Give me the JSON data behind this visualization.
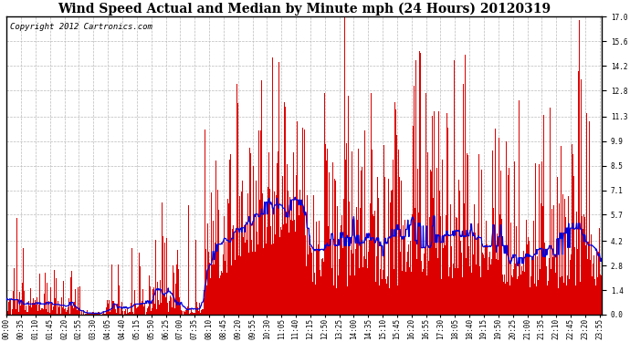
{
  "title": "Wind Speed Actual and Median by Minute mph (24 Hours) 20120319",
  "copyright": "Copyright 2012 Cartronics.com",
  "yticks": [
    0.0,
    1.4,
    2.8,
    4.2,
    5.7,
    7.1,
    8.5,
    9.9,
    11.3,
    12.8,
    14.2,
    15.6,
    17.0
  ],
  "ylim": [
    0.0,
    17.0
  ],
  "bar_color": "#dd0000",
  "line_color": "#0000dd",
  "bg_color": "#ffffff",
  "grid_color": "#bbbbbb",
  "title_fontsize": 10,
  "copyright_fontsize": 6.5,
  "tick_fontsize": 5.5,
  "total_minutes": 1440,
  "xtick_step": 35
}
